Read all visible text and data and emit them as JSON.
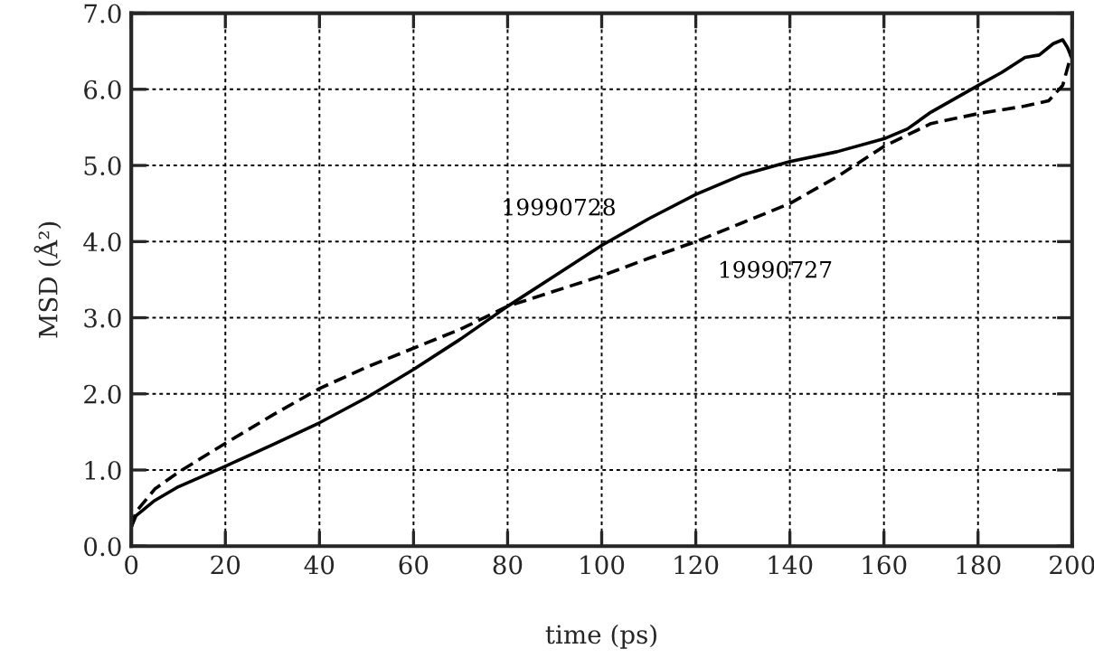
{
  "chart_data": {
    "type": "line",
    "xlabel": "time (ps)",
    "ylabel": "MSD (Å²)",
    "xlim": [
      0,
      200
    ],
    "ylim": [
      0,
      7
    ],
    "xticks": [
      0,
      20,
      40,
      60,
      80,
      100,
      120,
      140,
      160,
      180,
      200
    ],
    "yticks": [
      {
        "value": 0,
        "label": "0.0"
      },
      {
        "value": 1,
        "label": "1.0"
      },
      {
        "value": 2,
        "label": "2.0"
      },
      {
        "value": 3,
        "label": "3.0"
      },
      {
        "value": 4,
        "label": "4.0"
      },
      {
        "value": 5,
        "label": "5.0"
      },
      {
        "value": 6,
        "label": "6.0"
      },
      {
        "value": 7,
        "label": "7.0"
      }
    ],
    "grid": true,
    "legend": false,
    "marker": "none",
    "series": [
      {
        "name": "19990728",
        "color": "#000000",
        "line_style": "solid",
        "x": [
          0,
          1,
          5,
          10,
          20,
          30,
          40,
          50,
          60,
          70,
          80,
          90,
          100,
          110,
          120,
          130,
          140,
          150,
          160,
          165,
          170,
          180,
          185,
          190,
          193,
          196,
          198,
          199,
          200
        ],
        "values": [
          0.25,
          0.4,
          0.6,
          0.78,
          1.05,
          1.33,
          1.62,
          1.95,
          2.32,
          2.72,
          3.15,
          3.55,
          3.95,
          4.3,
          4.62,
          4.88,
          5.05,
          5.18,
          5.35,
          5.48,
          5.7,
          6.05,
          6.22,
          6.42,
          6.45,
          6.6,
          6.65,
          6.55,
          6.4
        ]
      },
      {
        "name": "19990727",
        "color": "#000000",
        "line_style": "dashed",
        "x": [
          0,
          1,
          5,
          10,
          20,
          30,
          40,
          50,
          60,
          70,
          80,
          90,
          100,
          110,
          120,
          130,
          140,
          150,
          160,
          170,
          180,
          190,
          195,
          198,
          200
        ],
        "values": [
          0.25,
          0.45,
          0.75,
          0.97,
          1.35,
          1.72,
          2.07,
          2.35,
          2.6,
          2.85,
          3.15,
          3.35,
          3.55,
          3.78,
          4.0,
          4.25,
          4.5,
          4.85,
          5.25,
          5.55,
          5.68,
          5.78,
          5.85,
          6.05,
          6.5
        ]
      }
    ]
  }
}
